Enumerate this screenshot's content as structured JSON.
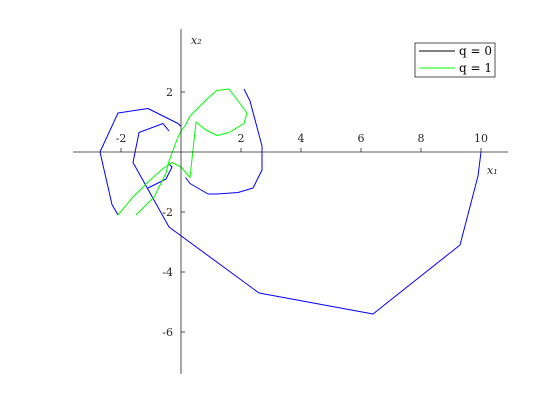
{
  "chart_data": {
    "type": "line",
    "title": "",
    "xlabel": "x₁",
    "ylabel": "x₂",
    "xlim": [
      -3.6,
      10.9
    ],
    "ylim": [
      -7.4,
      4.1
    ],
    "x_ticks": [
      -2,
      2,
      4,
      6,
      8,
      10
    ],
    "y_ticks": [
      2,
      -2,
      -4,
      -6
    ],
    "grid": false,
    "legend_position": "top-right",
    "series": [
      {
        "name": "q = 0",
        "color": "#000000",
        "legend_only": true,
        "x": [],
        "y": []
      },
      {
        "name": "q = 1",
        "color": "#00ff00",
        "x": [
          -2.1,
          -1.6,
          -1.1,
          -0.6,
          -0.3,
          0.0,
          0.3,
          0.5,
          0.8,
          1.2,
          1.6,
          2.1,
          2.2,
          1.9,
          1.6,
          1.2,
          0.9,
          0.6,
          0.3,
          0.15,
          0.0,
          -0.1,
          -0.25,
          -0.4,
          -0.5,
          -0.62,
          -0.9,
          -1.5
        ],
        "y": [
          -2.1,
          -1.5,
          -1.0,
          -0.55,
          -0.35,
          -0.5,
          -0.85,
          1.0,
          0.75,
          0.55,
          0.65,
          0.95,
          1.3,
          1.7,
          2.1,
          2.05,
          1.8,
          1.5,
          1.2,
          0.9,
          0.7,
          0.5,
          0.1,
          -0.3,
          -0.7,
          -0.95,
          -1.5,
          -2.1
        ]
      },
      {
        "name": "",
        "color": "#0000ff",
        "segments": [
          {
            "x": [
              -2.1,
              -2.3,
              -2.7,
              -2.1,
              -1.1,
              -0.1,
              0.0
            ],
            "y": [
              -2.1,
              -1.75,
              0.0,
              1.3,
              1.45,
              0.95,
              0.85
            ]
          },
          {
            "x": [
              2.1,
              2.3,
              2.7,
              2.7,
              2.4,
              1.9,
              1.2,
              0.9,
              0.3,
              0.15
            ],
            "y": [
              2.1,
              1.7,
              0.2,
              -0.6,
              -1.2,
              -1.35,
              -1.4,
              -1.4,
              -1.05,
              -0.85
            ]
          },
          {
            "x": [
              -1.1,
              -0.5,
              -0.3,
              -0.4
            ],
            "y": [
              -1.2,
              -0.9,
              -0.5,
              -0.4
            ]
          },
          {
            "x": [
              -0.4,
              -0.6,
              -1.4,
              -1.6,
              -0.4,
              2.6,
              6.4,
              9.3,
              9.9,
              10.0
            ],
            "y": [
              0.7,
              0.95,
              0.65,
              -0.35,
              -2.5,
              -4.7,
              -5.4,
              -3.1,
              -0.8,
              0.0
            ]
          }
        ]
      }
    ]
  },
  "legend": {
    "items": [
      {
        "label": "q = 0",
        "color": "#000000"
      },
      {
        "label": "q = 1",
        "color": "#00ff00"
      }
    ]
  }
}
